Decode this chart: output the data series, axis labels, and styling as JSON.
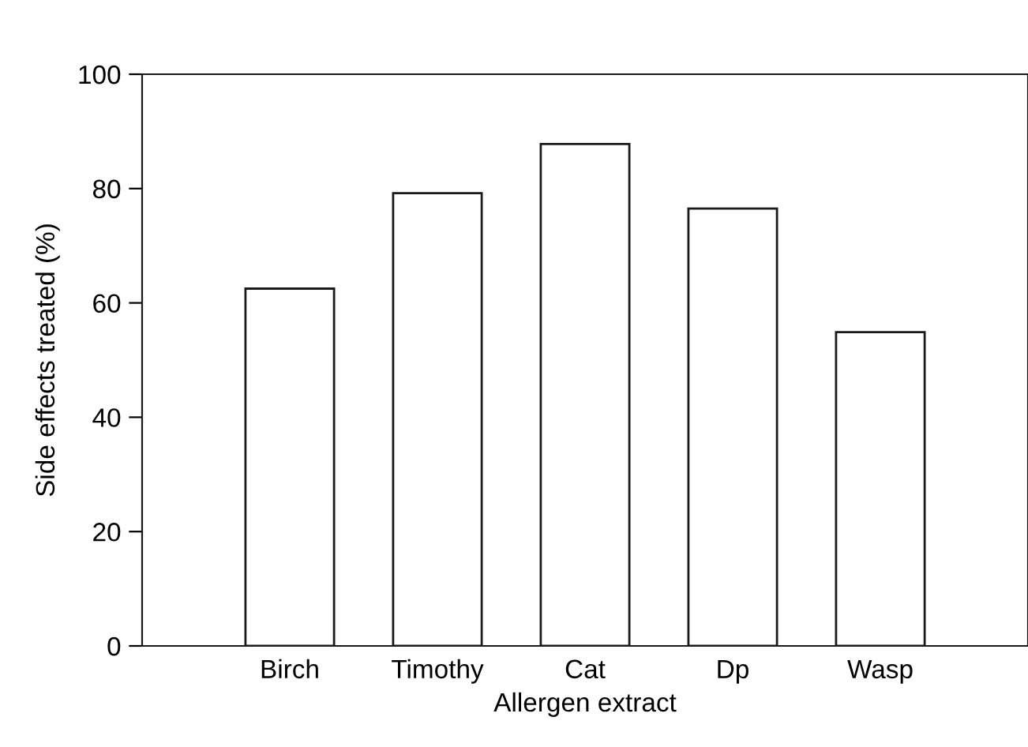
{
  "chart_data": {
    "type": "bar",
    "xlabel": "Allergen extract",
    "ylabel": "Side effects treated (%)",
    "categories": [
      "Birch",
      "Timothy",
      "Cat",
      "Dp",
      "Wasp"
    ],
    "values": [
      62.5,
      79.2,
      87.8,
      76.5,
      54.9
    ],
    "color": "#ffffff",
    "ylim": [
      0,
      100
    ],
    "yticks": [
      0,
      20,
      40,
      60,
      80,
      100
    ],
    "grid": false
  }
}
